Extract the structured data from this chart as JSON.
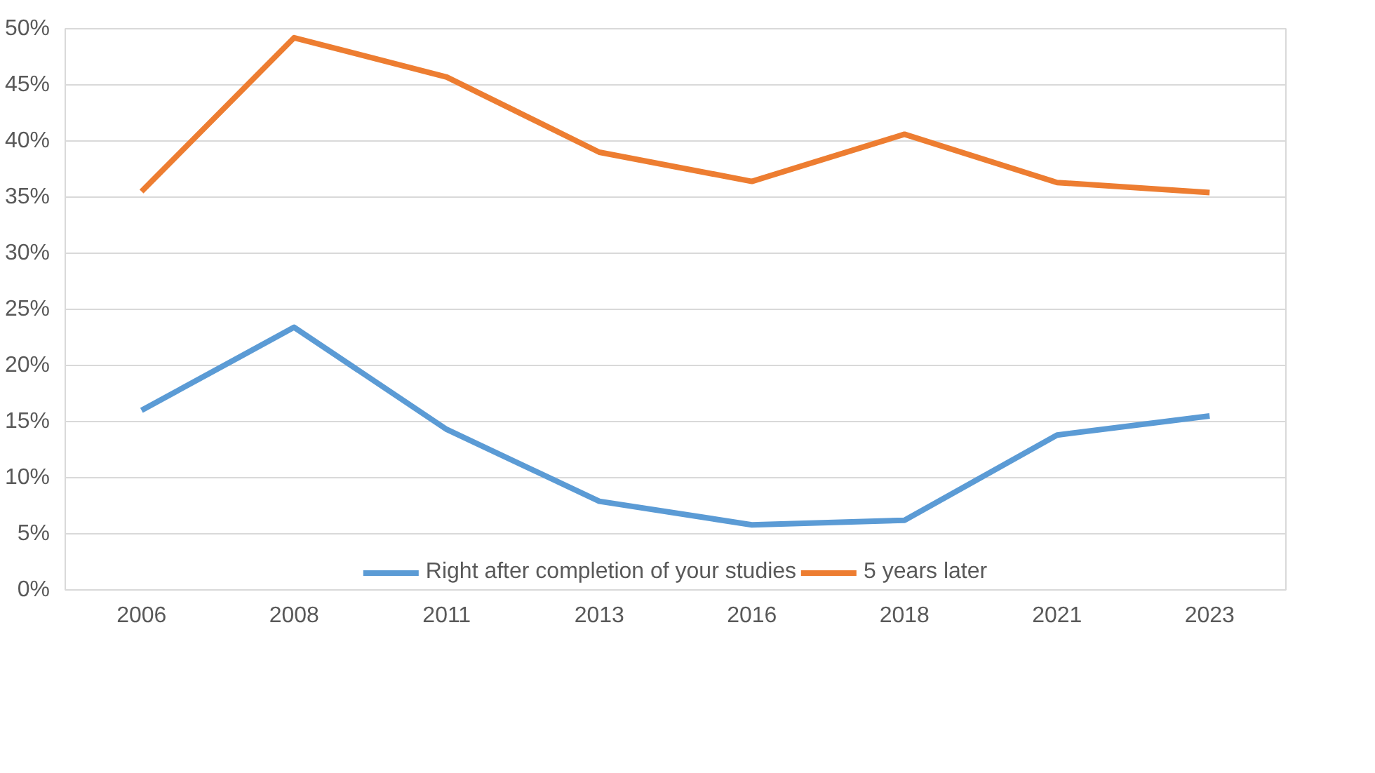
{
  "chart_data": {
    "type": "line",
    "categories": [
      "2006",
      "2008",
      "2011",
      "2013",
      "2016",
      "2018",
      "2021",
      "2023"
    ],
    "series": [
      {
        "name": "Right after completion of your studies",
        "color": "#5b9bd5",
        "values": [
          16.0,
          23.4,
          14.3,
          7.9,
          5.8,
          6.2,
          13.8,
          15.5
        ]
      },
      {
        "name": "5 years later",
        "color": "#ed7d31",
        "values": [
          35.5,
          49.2,
          45.7,
          39.0,
          36.4,
          40.6,
          36.3,
          35.4
        ]
      }
    ],
    "ylim": [
      0,
      50
    ],
    "yticks": [
      {
        "value": 0,
        "label": "0%"
      },
      {
        "value": 5,
        "label": "5%"
      },
      {
        "value": 10,
        "label": "10%"
      },
      {
        "value": 15,
        "label": "15%"
      },
      {
        "value": 20,
        "label": "20%"
      },
      {
        "value": 25,
        "label": "25%"
      },
      {
        "value": 30,
        "label": "30%"
      },
      {
        "value": 35,
        "label": "35%"
      },
      {
        "value": 40,
        "label": "40%"
      },
      {
        "value": 45,
        "label": "45%"
      },
      {
        "value": 50,
        "label": "50%"
      }
    ],
    "grid": "y",
    "legend": "bottom",
    "marker": "none",
    "line_style": "solid"
  }
}
